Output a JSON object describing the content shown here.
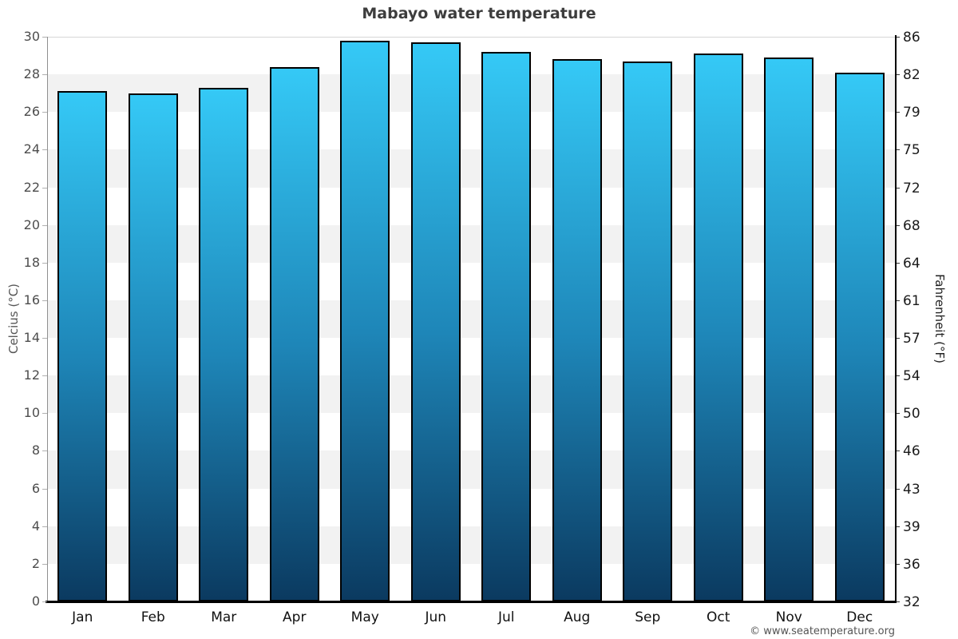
{
  "title": "Mabayo water temperature",
  "copyright": "© www.seatemperature.org",
  "axes": {
    "left_label": "Celcius (°C)",
    "right_label": "Fahrenheit (°F)"
  },
  "chart_data": {
    "type": "bar",
    "title": "Mabayo water temperature",
    "categories": [
      "Jan",
      "Feb",
      "Mar",
      "Apr",
      "May",
      "Jun",
      "Jul",
      "Aug",
      "Sep",
      "Oct",
      "Nov",
      "Dec"
    ],
    "values": [
      27.1,
      27.0,
      27.3,
      28.4,
      29.8,
      29.7,
      29.2,
      28.8,
      28.7,
      29.1,
      28.9,
      28.1
    ],
    "xlabel": "",
    "ylabel_left": "Celcius (°C)",
    "ylabel_right": "Fahrenheit (°F)",
    "ylim_celsius": [
      0,
      30
    ],
    "ylim_fahrenheit": [
      32,
      86
    ],
    "left_ticks_celsius": [
      30,
      28,
      26,
      24,
      22,
      20,
      18,
      16,
      14,
      12,
      10,
      8,
      6,
      4,
      2,
      0
    ],
    "right_ticks_fahrenheit": [
      86,
      82,
      79,
      75,
      72,
      68,
      64,
      61,
      57,
      54,
      50,
      46,
      43,
      39,
      36,
      32
    ],
    "legend": "none",
    "grid": "alternating horizontal bands every 2°C",
    "colors": {
      "bar_gradient_top": "#35c9f6",
      "bar_gradient_mid": "#1e86b8",
      "bar_gradient_bottom": "#0b3a60",
      "bar_border": "#000000",
      "band_gray": "#f2f2f2",
      "band_white": "#ffffff",
      "title_color": "#3d3d3d",
      "left_axis_text": "#4d4d4d",
      "right_axis_text": "#1a1a1a"
    }
  }
}
